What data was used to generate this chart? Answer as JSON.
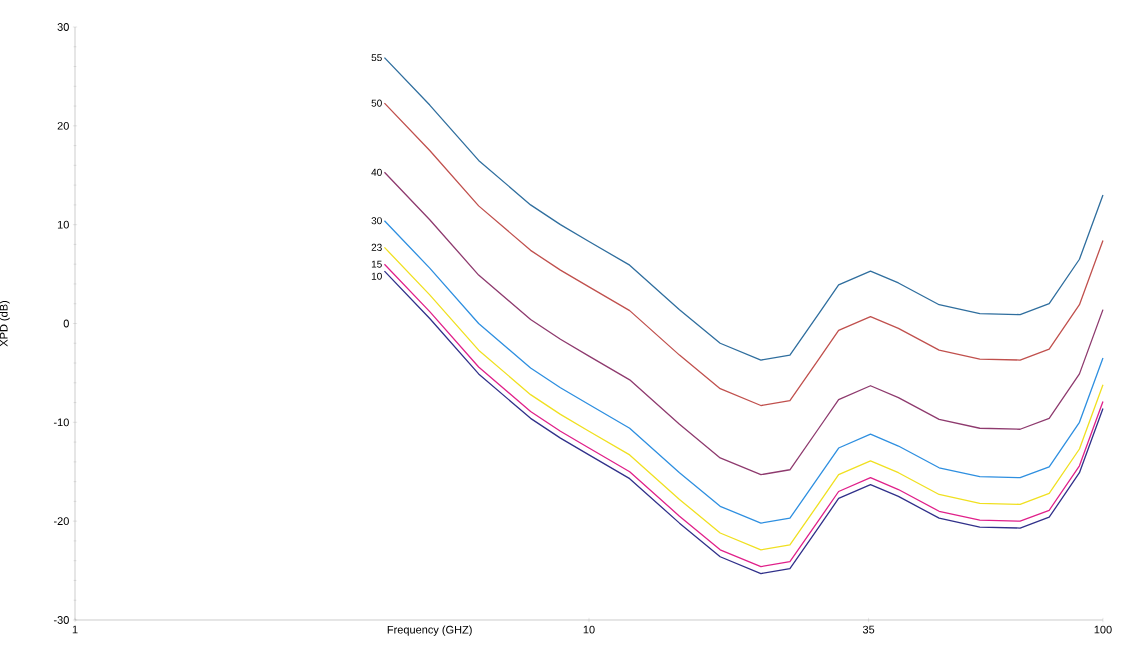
{
  "chart_data": {
    "type": "line",
    "xlabel": "Frequency (GHZ)",
    "ylabel": "XPD (dB)",
    "log": "x",
    "xlim": [
      1,
      100
    ],
    "xticks": [
      1,
      10,
      35,
      100
    ],
    "ylim": [
      -30,
      30
    ],
    "yticks": [
      -30,
      -20,
      -10,
      0,
      10,
      20,
      30
    ],
    "x": [
      4,
      4.9,
      6.1,
      7.7,
      8.8,
      10,
      12,
      15,
      18,
      21.6,
      24.6,
      28,
      30.6,
      35.3,
      40,
      48,
      57.6,
      69,
      78.6,
      90,
      100
    ],
    "series": [
      {
        "name": "55",
        "color": "#2f6e9e",
        "values": [
          26.9,
          22.1,
          16.5,
          12.0,
          10.0,
          8.3,
          5.9,
          1.4,
          -2.0,
          -3.7,
          -3.2,
          1.0,
          3.9,
          5.3,
          4.1,
          1.9,
          1.0,
          0.9,
          2.0,
          6.5,
          13.0
        ]
      },
      {
        "name": "50",
        "color": "#c0504d",
        "values": [
          22.3,
          17.5,
          11.9,
          7.4,
          5.4,
          3.7,
          1.3,
          -3.2,
          -6.6,
          -8.3,
          -7.8,
          -3.6,
          -0.7,
          0.7,
          -0.5,
          -2.7,
          -3.6,
          -3.7,
          -2.6,
          1.9,
          8.4
        ]
      },
      {
        "name": "40",
        "color": "#8e3a6e",
        "values": [
          15.3,
          10.5,
          4.9,
          0.4,
          -1.6,
          -3.3,
          -5.7,
          -10.2,
          -13.6,
          -15.3,
          -14.8,
          -10.6,
          -7.7,
          -6.3,
          -7.5,
          -9.7,
          -10.6,
          -10.7,
          -9.6,
          -5.1,
          1.4
        ]
      },
      {
        "name": "30",
        "color": "#2e8fe0",
        "values": [
          10.4,
          5.6,
          0.0,
          -4.5,
          -6.5,
          -8.2,
          -10.6,
          -15.1,
          -18.5,
          -20.2,
          -19.7,
          -15.5,
          -12.6,
          -11.2,
          -12.4,
          -14.6,
          -15.5,
          -15.6,
          -14.5,
          -10.0,
          -3.5
        ]
      },
      {
        "name": "23",
        "color": "#f0e020",
        "values": [
          7.7,
          2.9,
          -2.7,
          -7.2,
          -9.2,
          -10.9,
          -13.3,
          -17.8,
          -21.2,
          -22.9,
          -22.4,
          -18.2,
          -15.3,
          -13.9,
          -15.1,
          -17.3,
          -18.2,
          -18.3,
          -17.2,
          -12.7,
          -6.2
        ]
      },
      {
        "name": "15",
        "color": "#e0208a",
        "values": [
          6.0,
          1.2,
          -4.4,
          -8.9,
          -10.9,
          -12.6,
          -15.0,
          -19.5,
          -22.9,
          -24.6,
          -24.1,
          -19.9,
          -17.0,
          -15.6,
          -16.8,
          -19.0,
          -19.9,
          -20.0,
          -18.9,
          -14.4,
          -7.9
        ]
      },
      {
        "name": "10",
        "color": "#30308a",
        "values": [
          5.3,
          0.5,
          -5.1,
          -9.6,
          -11.6,
          -13.3,
          -15.7,
          -20.2,
          -23.6,
          -25.3,
          -24.8,
          -20.6,
          -17.7,
          -16.3,
          -17.5,
          -19.7,
          -20.6,
          -20.7,
          -19.6,
          -15.1,
          -8.6
        ]
      }
    ]
  }
}
